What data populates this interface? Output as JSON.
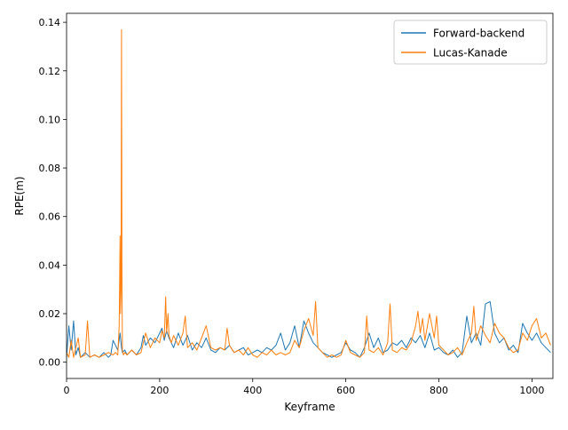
{
  "chart_data": {
    "type": "line",
    "title": "",
    "xlabel": "Keyframe",
    "ylabel": "RPE(m)",
    "xlim": [
      0,
      1045
    ],
    "ylim": [
      -0.0067,
      0.1437
    ],
    "xticks": [
      0,
      200,
      400,
      600,
      800,
      1000
    ],
    "xtick_labels": [
      "0",
      "200",
      "400",
      "600",
      "800",
      "1000"
    ],
    "yticks": [
      0.0,
      0.02,
      0.04,
      0.06,
      0.08,
      0.1,
      0.12,
      0.14
    ],
    "ytick_labels": [
      "0.00",
      "0.02",
      "0.04",
      "0.06",
      "0.08",
      "0.10",
      "0.12",
      "0.14"
    ],
    "grid": false,
    "legend_position": "top-right",
    "series": [
      {
        "name": "Forward-backend",
        "color": "#1f77b4",
        "x": [
          0,
          5,
          10,
          15,
          20,
          25,
          30,
          40,
          50,
          60,
          70,
          80,
          90,
          95,
          100,
          110,
          115,
          118,
          120,
          125,
          130,
          140,
          150,
          160,
          165,
          170,
          180,
          190,
          200,
          205,
          210,
          215,
          220,
          230,
          240,
          250,
          260,
          270,
          280,
          290,
          300,
          310,
          320,
          330,
          340,
          350,
          360,
          370,
          380,
          390,
          400,
          410,
          420,
          430,
          440,
          450,
          460,
          470,
          480,
          490,
          500,
          510,
          520,
          530,
          540,
          550,
          560,
          570,
          580,
          590,
          600,
          610,
          620,
          630,
          640,
          650,
          660,
          670,
          680,
          690,
          700,
          710,
          720,
          730,
          740,
          750,
          760,
          770,
          780,
          790,
          800,
          810,
          820,
          830,
          840,
          850,
          860,
          870,
          880,
          890,
          900,
          910,
          920,
          930,
          940,
          950,
          960,
          970,
          980,
          990,
          1000,
          1010,
          1020,
          1030,
          1040
        ],
        "y": [
          0.002,
          0.015,
          0.005,
          0.017,
          0.003,
          0.006,
          0.002,
          0.004,
          0.002,
          0.003,
          0.002,
          0.004,
          0.002,
          0.003,
          0.009,
          0.005,
          0.012,
          0.006,
          0.004,
          0.005,
          0.003,
          0.005,
          0.003,
          0.006,
          0.011,
          0.007,
          0.01,
          0.008,
          0.012,
          0.014,
          0.009,
          0.013,
          0.01,
          0.006,
          0.012,
          0.007,
          0.011,
          0.005,
          0.008,
          0.006,
          0.01,
          0.005,
          0.004,
          0.006,
          0.005,
          0.007,
          0.004,
          0.005,
          0.006,
          0.003,
          0.004,
          0.005,
          0.004,
          0.006,
          0.005,
          0.007,
          0.012,
          0.005,
          0.008,
          0.015,
          0.006,
          0.017,
          0.012,
          0.008,
          0.006,
          0.004,
          0.003,
          0.002,
          0.003,
          0.004,
          0.008,
          0.005,
          0.004,
          0.002,
          0.006,
          0.012,
          0.006,
          0.01,
          0.004,
          0.005,
          0.008,
          0.007,
          0.009,
          0.006,
          0.01,
          0.008,
          0.011,
          0.006,
          0.012,
          0.005,
          0.006,
          0.004,
          0.003,
          0.005,
          0.002,
          0.004,
          0.019,
          0.008,
          0.012,
          0.007,
          0.024,
          0.025,
          0.012,
          0.008,
          0.01,
          0.005,
          0.007,
          0.004,
          0.016,
          0.012,
          0.009,
          0.012,
          0.008,
          0.006,
          0.004
        ]
      },
      {
        "name": "Lucas-Kanade",
        "color": "#ff7f0e",
        "x": [
          0,
          5,
          10,
          15,
          20,
          25,
          30,
          40,
          45,
          50,
          60,
          70,
          80,
          90,
          100,
          105,
          110,
          113,
          115,
          116,
          117,
          118,
          119,
          120,
          122,
          125,
          130,
          140,
          150,
          160,
          170,
          180,
          190,
          200,
          205,
          210,
          213,
          215,
          218,
          220,
          225,
          230,
          240,
          250,
          255,
          260,
          270,
          280,
          290,
          300,
          310,
          320,
          330,
          340,
          345,
          350,
          360,
          370,
          380,
          390,
          400,
          410,
          420,
          430,
          440,
          450,
          460,
          470,
          480,
          490,
          500,
          510,
          520,
          530,
          535,
          540,
          550,
          560,
          570,
          580,
          590,
          600,
          610,
          620,
          630,
          640,
          645,
          650,
          660,
          670,
          680,
          690,
          695,
          700,
          710,
          720,
          730,
          740,
          750,
          755,
          760,
          765,
          770,
          780,
          790,
          795,
          800,
          810,
          820,
          830,
          840,
          850,
          860,
          870,
          875,
          880,
          890,
          900,
          910,
          920,
          930,
          940,
          950,
          960,
          970,
          980,
          990,
          1000,
          1010,
          1020,
          1030,
          1040
        ],
        "y": [
          0.004,
          0.002,
          0.009,
          0.002,
          0.006,
          0.01,
          0.002,
          0.003,
          0.017,
          0.002,
          0.003,
          0.002,
          0.003,
          0.004,
          0.003,
          0.004,
          0.003,
          0.015,
          0.052,
          0.02,
          0.03,
          0.137,
          0.04,
          0.005,
          0.003,
          0.004,
          0.003,
          0.005,
          0.003,
          0.004,
          0.012,
          0.006,
          0.01,
          0.008,
          0.013,
          0.01,
          0.027,
          0.012,
          0.02,
          0.011,
          0.008,
          0.011,
          0.007,
          0.012,
          0.019,
          0.006,
          0.008,
          0.005,
          0.01,
          0.015,
          0.006,
          0.005,
          0.006,
          0.005,
          0.014,
          0.007,
          0.004,
          0.005,
          0.003,
          0.006,
          0.003,
          0.002,
          0.004,
          0.003,
          0.005,
          0.003,
          0.004,
          0.003,
          0.004,
          0.009,
          0.006,
          0.013,
          0.018,
          0.011,
          0.025,
          0.006,
          0.004,
          0.002,
          0.003,
          0.002,
          0.003,
          0.009,
          0.004,
          0.003,
          0.002,
          0.004,
          0.019,
          0.005,
          0.004,
          0.006,
          0.003,
          0.008,
          0.024,
          0.005,
          0.004,
          0.006,
          0.005,
          0.008,
          0.015,
          0.021,
          0.012,
          0.018,
          0.009,
          0.02,
          0.01,
          0.019,
          0.007,
          0.005,
          0.003,
          0.004,
          0.006,
          0.003,
          0.008,
          0.012,
          0.023,
          0.009,
          0.015,
          0.011,
          0.008,
          0.016,
          0.012,
          0.01,
          0.006,
          0.004,
          0.005,
          0.012,
          0.009,
          0.015,
          0.018,
          0.01,
          0.012,
          0.007
        ]
      }
    ]
  }
}
